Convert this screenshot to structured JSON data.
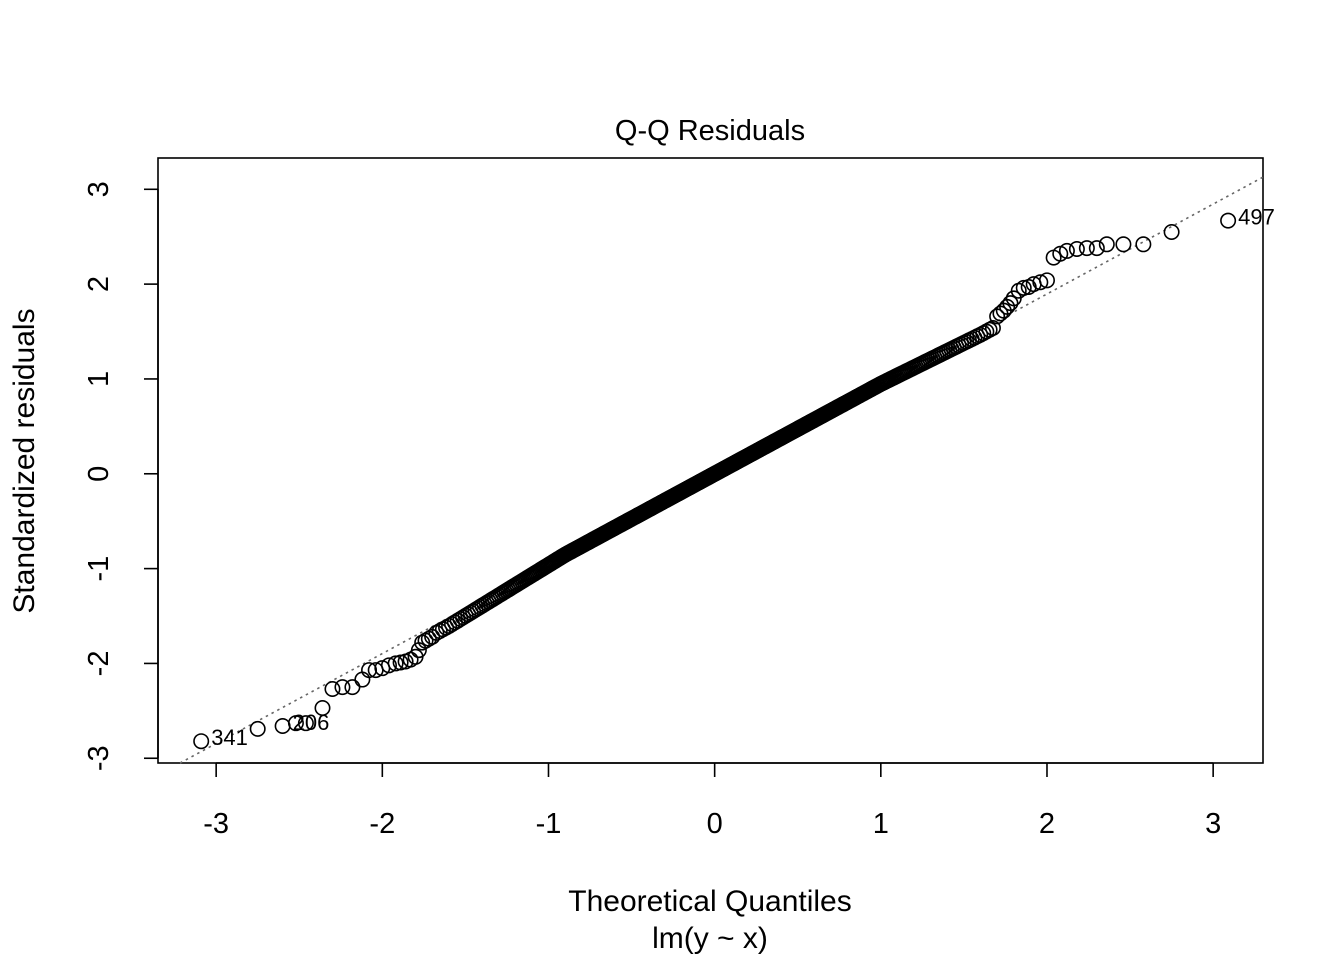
{
  "chart_data": {
    "type": "scatter",
    "title": "Q-Q Residuals",
    "xlabel": "Theoretical Quantiles",
    "xsublabel": "lm(y ~ x)",
    "ylabel": "Standardized residuals",
    "xlim": [
      -3.35,
      3.3
    ],
    "ylim": [
      -3.05,
      3.33
    ],
    "xticks": [
      -3,
      -2,
      -1,
      0,
      1,
      2,
      3
    ],
    "xtick_labels": [
      "-3",
      "-2",
      "-1",
      "0",
      "1",
      "2",
      "3"
    ],
    "yticks": [
      -3,
      -2,
      -1,
      0,
      1,
      2,
      3
    ],
    "ytick_labels": [
      "-3",
      "-2",
      "-1",
      "0",
      "1",
      "2",
      "3"
    ],
    "grid": false,
    "legend": "none",
    "reference_line": {
      "style": "dotted",
      "color": "#666666",
      "slope": 0.948,
      "intercept": 0.0
    },
    "point_count": 500,
    "outer_points": {
      "x": [
        -3.09,
        -2.75,
        -2.6,
        -2.52,
        -2.46,
        -2.36,
        -2.3,
        -2.24,
        -2.18,
        -2.12,
        -2.08,
        -2.04,
        -2.0,
        -1.96,
        -1.92,
        -1.89,
        -1.86,
        -1.83,
        -1.8,
        -1.78,
        -1.76,
        -1.74,
        -1.72,
        -1.7,
        1.7,
        1.72,
        1.74,
        1.76,
        1.78,
        1.8,
        1.83,
        1.86,
        1.89,
        1.92,
        1.96,
        2.0,
        2.04,
        2.08,
        2.12,
        2.18,
        2.24,
        2.3,
        2.36,
        2.46,
        2.58,
        2.75,
        3.09
      ],
      "y": [
        -2.82,
        -2.69,
        -2.66,
        -2.63,
        -2.63,
        -2.47,
        -2.27,
        -2.25,
        -2.25,
        -2.17,
        -2.07,
        -2.07,
        -2.05,
        -2.02,
        -2.0,
        -1.99,
        -1.98,
        -1.96,
        -1.93,
        -1.86,
        -1.78,
        -1.76,
        -1.74,
        -1.72,
        1.66,
        1.69,
        1.72,
        1.76,
        1.8,
        1.85,
        1.93,
        1.96,
        1.97,
        2.0,
        2.02,
        2.04,
        2.28,
        2.32,
        2.35,
        2.37,
        2.38,
        2.38,
        2.42,
        2.42,
        2.42,
        2.55,
        2.67
      ]
    },
    "point_labels": [
      {
        "text": "341",
        "x": -3.09,
        "y": -2.82
      },
      {
        "text": "206",
        "x": -2.6,
        "y": -2.66
      },
      {
        "text": "497",
        "x": 3.09,
        "y": 2.67
      }
    ]
  }
}
